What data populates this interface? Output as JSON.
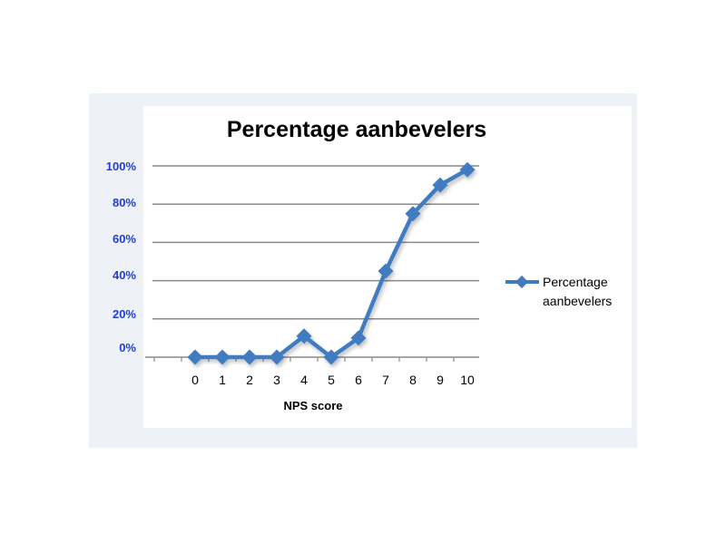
{
  "chart_data": {
    "type": "line",
    "title": "Percentage aanbevelers",
    "xlabel": "NPS score",
    "ylabel": "",
    "x": [
      0,
      1,
      2,
      3,
      4,
      5,
      6,
      7,
      8,
      9,
      10
    ],
    "y_tick_labels": [
      "100%",
      "80%",
      "60%",
      "40%",
      "20%",
      "0%"
    ],
    "ylim": [
      0,
      100
    ],
    "grid": true,
    "legend_position": "right",
    "series": [
      {
        "name": "Percentage aanbevelers",
        "color": "#3f7bbf",
        "values": [
          0,
          0,
          0,
          0,
          11,
          0,
          10,
          45,
          75,
          90,
          98
        ]
      }
    ]
  },
  "legend": {
    "line1": "Percentage",
    "line2": "aanbevelers"
  }
}
